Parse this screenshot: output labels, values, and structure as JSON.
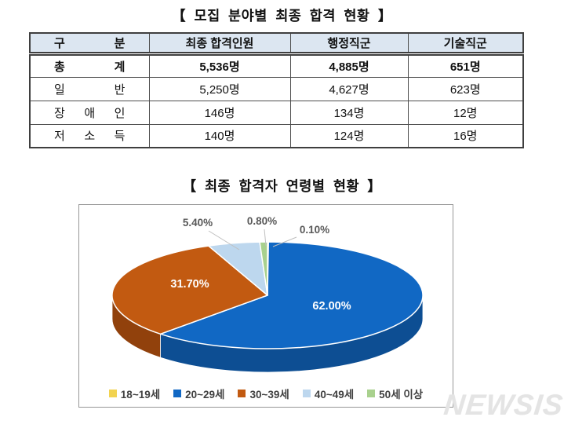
{
  "page": {
    "background": "#ffffff"
  },
  "watermark": "NEWSIS",
  "colors": {
    "table_header_bg": "#dce6f1",
    "table_border": "#3f3f3f",
    "chart_panel_border": "#979797",
    "legend_text": "#404040",
    "watermark": "#e4e4e4"
  },
  "chart_data": [
    {
      "type": "table",
      "title": "【 모집 분야별 최종 합격 현황 】",
      "columns": [
        "구 분",
        "최종 합격인원",
        "행정직군",
        "기술직군"
      ],
      "rows": [
        [
          "총 계",
          "5,536명",
          "4,885명",
          "651명"
        ],
        [
          "일 반",
          "5,250명",
          "4,627명",
          "623명"
        ],
        [
          "장 애 인",
          "146명",
          "134명",
          "12명"
        ],
        [
          "저 소 득",
          "140명",
          "124명",
          "16명"
        ]
      ],
      "emphasis_row": 0
    },
    {
      "type": "pie",
      "title": "【 최종 합격자 연령별 현황 】",
      "labels": [
        "18~19세",
        "20~29세",
        "30~39세",
        "40~49세",
        "50세 이상"
      ],
      "values": [
        0.1,
        62.0,
        31.7,
        5.4,
        0.8
      ],
      "data_labels": [
        "0.10%",
        "62.00%",
        "31.70%",
        "5.40%",
        "0.80%"
      ],
      "colors": [
        "#F2D350",
        "#1168C4",
        "#C25A11",
        "#BDD7EE",
        "#A9D18E"
      ],
      "side_colors": [
        "#B89C2E",
        "#0D4E93",
        "#91410C",
        "#8FB4D6",
        "#7DA860"
      ],
      "label_color_inside": "#FFFFFF",
      "label_color_outside": "#595959",
      "leader_line_color": "#BFBFBF",
      "effect": "3d",
      "start_angle_deg": 0,
      "direction": "clockwise",
      "legend_position": "bottom"
    }
  ]
}
